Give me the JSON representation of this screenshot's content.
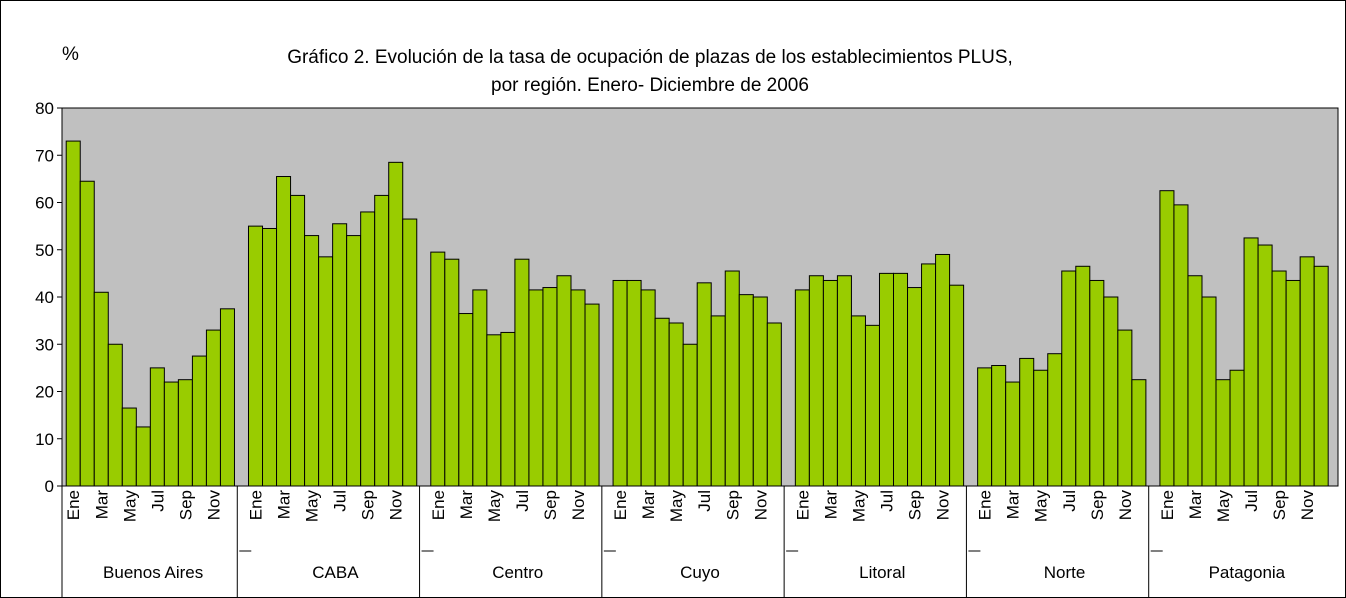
{
  "chart_data": {
    "type": "grouped-bar",
    "title": "Gráfico 2. Evolución de la tasa de ocupación de plazas de los establecimientos PLUS, por región. Enero- Diciembre de 2006",
    "ylabel": "%",
    "groups": [
      "Buenos Aires",
      "CABA",
      "Centro",
      "Cuyo",
      "Litoral",
      "Norte",
      "Patagonia"
    ],
    "categories": [
      "Ene",
      null,
      "Mar",
      null,
      "May",
      null,
      "Jul",
      null,
      "Sep",
      null,
      "Nov",
      null
    ],
    "values": [
      [
        73,
        64.5,
        41,
        30,
        16.5,
        12.5,
        25,
        22,
        22.5,
        27.5,
        33,
        37.5
      ],
      [
        55,
        54.5,
        65.5,
        61.5,
        53,
        48.5,
        55.5,
        53,
        58,
        61.5,
        68.5,
        56.5
      ],
      [
        49.5,
        48,
        36.5,
        41.5,
        32,
        32.5,
        48,
        41.5,
        42,
        44.5,
        41.5,
        38.5
      ],
      [
        43.5,
        43.5,
        41.5,
        35.5,
        34.5,
        30,
        43,
        36,
        45.5,
        40.5,
        40,
        34.5
      ],
      [
        41.5,
        44.5,
        43.5,
        44.5,
        36,
        34,
        45,
        45,
        42,
        47,
        49,
        42.5
      ],
      [
        25,
        25.5,
        22,
        27,
        24.5,
        28,
        45.5,
        46.5,
        43.5,
        40,
        33,
        22.5
      ],
      [
        62.5,
        59.5,
        44.5,
        40,
        22.5,
        24.5,
        52.5,
        51,
        45.5,
        43.5,
        48.5,
        46.5
      ]
    ],
    "color": "#99cc00",
    "plot_background": "#c0c0c0",
    "ylim": [
      0,
      80
    ],
    "yticks": [
      0,
      10,
      20,
      30,
      40,
      50,
      60,
      70,
      80
    ],
    "grid": false
  }
}
